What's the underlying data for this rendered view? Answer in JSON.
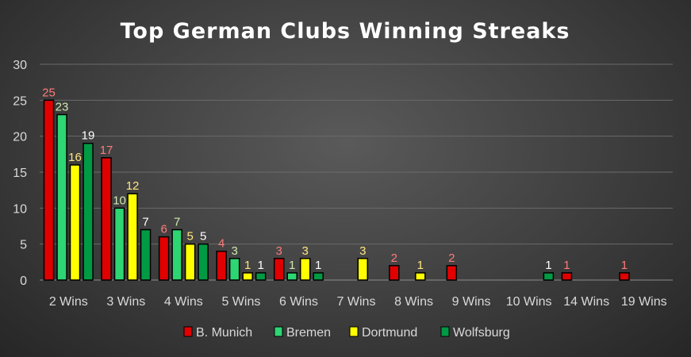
{
  "chart_data": {
    "type": "bar",
    "title": "Top German Clubs Winning Streaks",
    "xlabel": "",
    "ylabel": "",
    "ylim": [
      0,
      30
    ],
    "yticks": [
      0,
      5,
      10,
      15,
      20,
      25,
      30
    ],
    "grid": true,
    "legend_position": "bottom",
    "categories": [
      "2 Wins",
      "3 Wins",
      "4 Wins",
      "5 Wins",
      "6 Wins",
      "7 Wins",
      "8 Wins",
      "9 Wins",
      "10 Wins",
      "14 Wins",
      "19 Wins"
    ],
    "series": [
      {
        "name": "B. Munich",
        "color": "#e00000",
        "label_color": "#ff7a7a",
        "values": [
          25,
          17,
          6,
          4,
          3,
          null,
          2,
          2,
          null,
          1,
          1
        ]
      },
      {
        "name": "Bremen",
        "color": "#2ed573",
        "label_color": "#cfe8b0",
        "values": [
          23,
          10,
          7,
          3,
          1,
          null,
          null,
          null,
          null,
          null,
          null
        ]
      },
      {
        "name": "Dortmund",
        "color": "#ffff00",
        "label_color": "#ffe680",
        "values": [
          16,
          12,
          5,
          1,
          3,
          3,
          1,
          null,
          null,
          null,
          null
        ]
      },
      {
        "name": "Wolfsburg",
        "color": "#009a44",
        "label_color": "#ffffff",
        "values": [
          19,
          7,
          5,
          1,
          1,
          null,
          null,
          null,
          1,
          null,
          null
        ]
      }
    ]
  }
}
